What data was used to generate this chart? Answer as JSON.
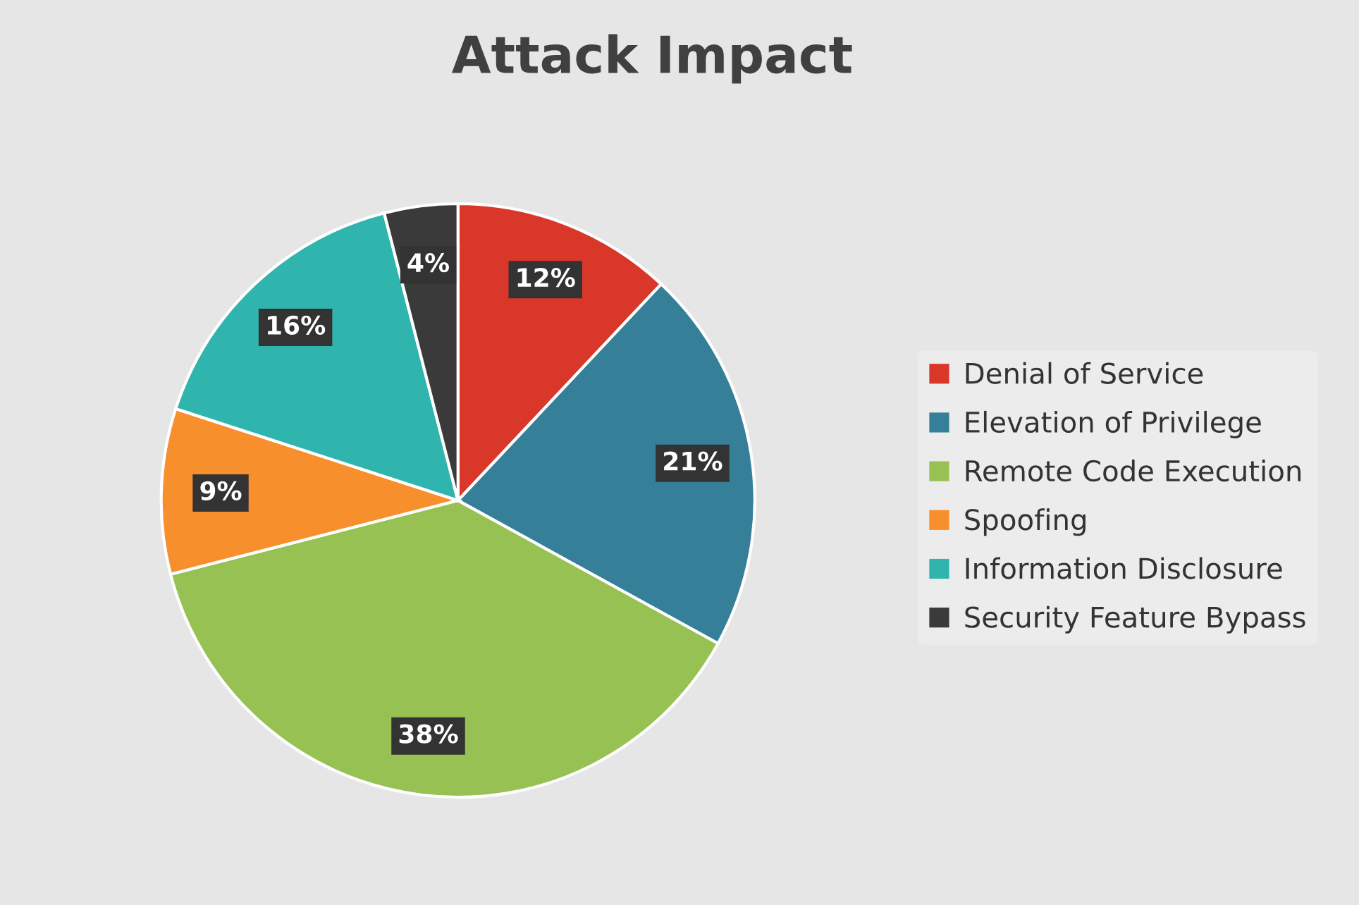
{
  "chart_data": {
    "type": "pie",
    "title": "Attack Impact",
    "categories": [
      "Denial of Service",
      "Elevation of Privilege",
      "Remote Code Execution",
      "Spoofing",
      "Information Disclosure",
      "Security Feature Bypass"
    ],
    "values": [
      12,
      21,
      38,
      9,
      16,
      4
    ],
    "colors": [
      "#d9372a",
      "#357f99",
      "#97c153",
      "#f78f2d",
      "#2fb5ad",
      "#3a3a3a"
    ],
    "value_labels": [
      "12%",
      "21%",
      "38%",
      "9%",
      "16%",
      "4%"
    ],
    "legend": "right"
  }
}
